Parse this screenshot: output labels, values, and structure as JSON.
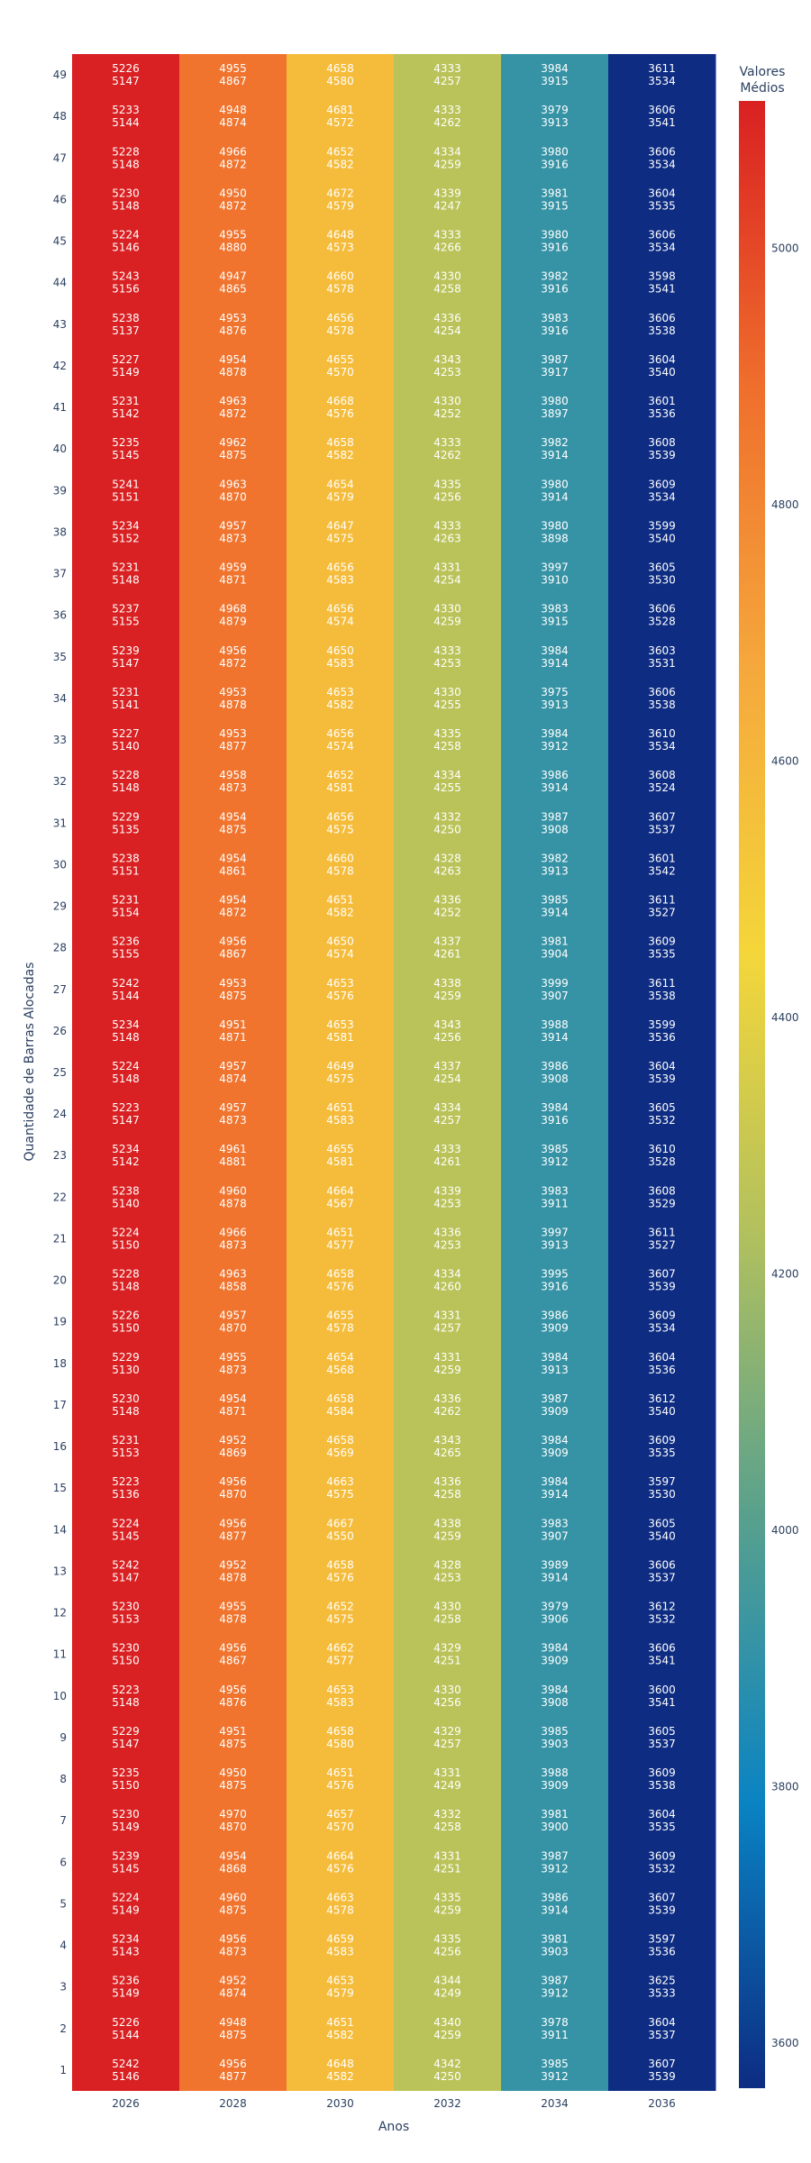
{
  "chart_data": {
    "type": "heatmap",
    "xlabel": "Anos",
    "ylabel": "Quantidade de Barras Alocadas",
    "colorbar_title": [
      "Valores",
      "Médios"
    ],
    "colorbar_ticks": [
      3600,
      3800,
      4000,
      4200,
      4400,
      4600,
      4800,
      5000
    ],
    "colorbar_range": [
      3565,
      5115
    ],
    "colorscale": [
      "#0d2c82",
      "#0a83c3",
      "#57a08e",
      "#b1c05e",
      "#f4d63a",
      "#f5a83c",
      "#ef6e2c",
      "#d92022"
    ],
    "x": [
      "2026",
      "2028",
      "2030",
      "2032",
      "2034",
      "2036"
    ],
    "y": [
      1,
      2,
      3,
      4,
      5,
      6,
      7,
      8,
      9,
      10,
      11,
      12,
      13,
      14,
      15,
      16,
      17,
      18,
      19,
      20,
      21,
      22,
      23,
      24,
      25,
      26,
      27,
      28,
      29,
      30,
      31,
      32,
      33,
      34,
      35,
      36,
      37,
      38,
      39,
      40,
      41,
      42,
      43,
      44,
      45,
      46,
      47,
      48,
      49
    ],
    "column_values": [
      5150,
      4870,
      4578,
      4260,
      3912,
      3535
    ],
    "rows": [
      [
        [
          5242,
          5146
        ],
        [
          4956,
          4877
        ],
        [
          4648,
          4582
        ],
        [
          4342,
          4250
        ],
        [
          3985,
          3912
        ],
        [
          3607,
          3539
        ]
      ],
      [
        [
          5226,
          5144
        ],
        [
          4948,
          4875
        ],
        [
          4651,
          4582
        ],
        [
          4340,
          4259
        ],
        [
          3978,
          3911
        ],
        [
          3604,
          3537
        ]
      ],
      [
        [
          5236,
          5149
        ],
        [
          4952,
          4874
        ],
        [
          4653,
          4579
        ],
        [
          4344,
          4249
        ],
        [
          3987,
          3912
        ],
        [
          3625,
          3533
        ]
      ],
      [
        [
          5234,
          5143
        ],
        [
          4956,
          4873
        ],
        [
          4659,
          4583
        ],
        [
          4335,
          4256
        ],
        [
          3981,
          3903
        ],
        [
          3597,
          3536
        ]
      ],
      [
        [
          5224,
          5149
        ],
        [
          4960,
          4875
        ],
        [
          4663,
          4578
        ],
        [
          4335,
          4259
        ],
        [
          3986,
          3914
        ],
        [
          3607,
          3539
        ]
      ],
      [
        [
          5239,
          5145
        ],
        [
          4954,
          4868
        ],
        [
          4664,
          4576
        ],
        [
          4331,
          4251
        ],
        [
          3987,
          3912
        ],
        [
          3609,
          3532
        ]
      ],
      [
        [
          5230,
          5149
        ],
        [
          4970,
          4870
        ],
        [
          4657,
          4570
        ],
        [
          4332,
          4258
        ],
        [
          3981,
          3900
        ],
        [
          3604,
          3535
        ]
      ],
      [
        [
          5235,
          5150
        ],
        [
          4950,
          4875
        ],
        [
          4651,
          4576
        ],
        [
          4331,
          4249
        ],
        [
          3988,
          3909
        ],
        [
          3609,
          3538
        ]
      ],
      [
        [
          5229,
          5147
        ],
        [
          4951,
          4875
        ],
        [
          4658,
          4580
        ],
        [
          4329,
          4257
        ],
        [
          3985,
          3903
        ],
        [
          3605,
          3537
        ]
      ],
      [
        [
          5223,
          5148
        ],
        [
          4956,
          4876
        ],
        [
          4653,
          4583
        ],
        [
          4330,
          4256
        ],
        [
          3984,
          3908
        ],
        [
          3600,
          3541
        ]
      ],
      [
        [
          5230,
          5150
        ],
        [
          4956,
          4867
        ],
        [
          4662,
          4577
        ],
        [
          4329,
          4251
        ],
        [
          3984,
          3909
        ],
        [
          3606,
          3541
        ]
      ],
      [
        [
          5230,
          5153
        ],
        [
          4955,
          4878
        ],
        [
          4652,
          4575
        ],
        [
          4330,
          4258
        ],
        [
          3979,
          3906
        ],
        [
          3612,
          3532
        ]
      ],
      [
        [
          5242,
          5147
        ],
        [
          4952,
          4878
        ],
        [
          4658,
          4576
        ],
        [
          4328,
          4253
        ],
        [
          3989,
          3914
        ],
        [
          3606,
          3537
        ]
      ],
      [
        [
          5224,
          5145
        ],
        [
          4956,
          4877
        ],
        [
          4667,
          4550
        ],
        [
          4338,
          4259
        ],
        [
          3983,
          3907
        ],
        [
          3605,
          3540
        ]
      ],
      [
        [
          5223,
          5136
        ],
        [
          4956,
          4870
        ],
        [
          4663,
          4575
        ],
        [
          4336,
          4258
        ],
        [
          3984,
          3914
        ],
        [
          3597,
          3530
        ]
      ],
      [
        [
          5231,
          5153
        ],
        [
          4952,
          4869
        ],
        [
          4658,
          4569
        ],
        [
          4343,
          4265
        ],
        [
          3984,
          3909
        ],
        [
          3609,
          3535
        ]
      ],
      [
        [
          5230,
          5148
        ],
        [
          4954,
          4871
        ],
        [
          4658,
          4584
        ],
        [
          4336,
          4262
        ],
        [
          3987,
          3909
        ],
        [
          3612,
          3540
        ]
      ],
      [
        [
          5229,
          5130
        ],
        [
          4955,
          4873
        ],
        [
          4654,
          4568
        ],
        [
          4331,
          4259
        ],
        [
          3984,
          3913
        ],
        [
          3604,
          3536
        ]
      ],
      [
        [
          5226,
          5150
        ],
        [
          4957,
          4870
        ],
        [
          4655,
          4578
        ],
        [
          4331,
          4257
        ],
        [
          3986,
          3909
        ],
        [
          3609,
          3534
        ]
      ],
      [
        [
          5228,
          5148
        ],
        [
          4963,
          4858
        ],
        [
          4658,
          4576
        ],
        [
          4334,
          4260
        ],
        [
          3995,
          3916
        ],
        [
          3607,
          3539
        ]
      ],
      [
        [
          5224,
          5150
        ],
        [
          4966,
          4873
        ],
        [
          4651,
          4577
        ],
        [
          4336,
          4253
        ],
        [
          3997,
          3913
        ],
        [
          3611,
          3527
        ]
      ],
      [
        [
          5238,
          5140
        ],
        [
          4960,
          4878
        ],
        [
          4664,
          4567
        ],
        [
          4339,
          4253
        ],
        [
          3983,
          3911
        ],
        [
          3608,
          3529
        ]
      ],
      [
        [
          5234,
          5142
        ],
        [
          4961,
          4881
        ],
        [
          4655,
          4581
        ],
        [
          4333,
          4261
        ],
        [
          3985,
          3912
        ],
        [
          3610,
          3528
        ]
      ],
      [
        [
          5223,
          5147
        ],
        [
          4957,
          4873
        ],
        [
          4651,
          4583
        ],
        [
          4334,
          4257
        ],
        [
          3984,
          3916
        ],
        [
          3605,
          3532
        ]
      ],
      [
        [
          5224,
          5148
        ],
        [
          4957,
          4874
        ],
        [
          4649,
          4575
        ],
        [
          4337,
          4254
        ],
        [
          3986,
          3908
        ],
        [
          3604,
          3539
        ]
      ],
      [
        [
          5234,
          5148
        ],
        [
          4951,
          4871
        ],
        [
          4653,
          4581
        ],
        [
          4343,
          4256
        ],
        [
          3988,
          3914
        ],
        [
          3599,
          3536
        ]
      ],
      [
        [
          5242,
          5144
        ],
        [
          4953,
          4875
        ],
        [
          4653,
          4576
        ],
        [
          4338,
          4259
        ],
        [
          3999,
          3907
        ],
        [
          3611,
          3538
        ]
      ],
      [
        [
          5236,
          5155
        ],
        [
          4956,
          4867
        ],
        [
          4650,
          4574
        ],
        [
          4337,
          4261
        ],
        [
          3981,
          3904
        ],
        [
          3609,
          3535
        ]
      ],
      [
        [
          5231,
          5154
        ],
        [
          4954,
          4872
        ],
        [
          4651,
          4582
        ],
        [
          4336,
          4252
        ],
        [
          3985,
          3914
        ],
        [
          3611,
          3527
        ]
      ],
      [
        [
          5238,
          5151
        ],
        [
          4954,
          4861
        ],
        [
          4660,
          4578
        ],
        [
          4328,
          4263
        ],
        [
          3982,
          3913
        ],
        [
          3601,
          3542
        ]
      ],
      [
        [
          5229,
          5135
        ],
        [
          4954,
          4875
        ],
        [
          4656,
          4575
        ],
        [
          4332,
          4250
        ],
        [
          3987,
          3908
        ],
        [
          3607,
          3537
        ]
      ],
      [
        [
          5228,
          5148
        ],
        [
          4958,
          4873
        ],
        [
          4652,
          4581
        ],
        [
          4334,
          4255
        ],
        [
          3986,
          3914
        ],
        [
          3608,
          3524
        ]
      ],
      [
        [
          5227,
          5140
        ],
        [
          4953,
          4877
        ],
        [
          4656,
          4574
        ],
        [
          4335,
          4258
        ],
        [
          3984,
          3912
        ],
        [
          3610,
          3534
        ]
      ],
      [
        [
          5231,
          5141
        ],
        [
          4953,
          4878
        ],
        [
          4653,
          4582
        ],
        [
          4330,
          4255
        ],
        [
          3975,
          3913
        ],
        [
          3606,
          3538
        ]
      ],
      [
        [
          5239,
          5147
        ],
        [
          4956,
          4872
        ],
        [
          4650,
          4583
        ],
        [
          4333,
          4253
        ],
        [
          3984,
          3914
        ],
        [
          3603,
          3531
        ]
      ],
      [
        [
          5237,
          5155
        ],
        [
          4968,
          4879
        ],
        [
          4656,
          4574
        ],
        [
          4330,
          4259
        ],
        [
          3983,
          3915
        ],
        [
          3606,
          3528
        ]
      ],
      [
        [
          5231,
          5148
        ],
        [
          4959,
          4871
        ],
        [
          4656,
          4583
        ],
        [
          4331,
          4254
        ],
        [
          3997,
          3910
        ],
        [
          3605,
          3530
        ]
      ],
      [
        [
          5234,
          5152
        ],
        [
          4957,
          4873
        ],
        [
          4647,
          4575
        ],
        [
          4333,
          4263
        ],
        [
          3980,
          3898
        ],
        [
          3599,
          3540
        ]
      ],
      [
        [
          5241,
          5151
        ],
        [
          4963,
          4870
        ],
        [
          4654,
          4579
        ],
        [
          4335,
          4256
        ],
        [
          3980,
          3914
        ],
        [
          3609,
          3534
        ]
      ],
      [
        [
          5235,
          5145
        ],
        [
          4962,
          4875
        ],
        [
          4658,
          4582
        ],
        [
          4333,
          4262
        ],
        [
          3982,
          3914
        ],
        [
          3608,
          3539
        ]
      ],
      [
        [
          5231,
          5142
        ],
        [
          4963,
          4872
        ],
        [
          4668,
          4576
        ],
        [
          4330,
          4252
        ],
        [
          3980,
          3897
        ],
        [
          3601,
          3536
        ]
      ],
      [
        [
          5227,
          5149
        ],
        [
          4954,
          4878
        ],
        [
          4655,
          4570
        ],
        [
          4343,
          4253
        ],
        [
          3987,
          3917
        ],
        [
          3604,
          3540
        ]
      ],
      [
        [
          5238,
          5137
        ],
        [
          4953,
          4876
        ],
        [
          4656,
          4578
        ],
        [
          4336,
          4254
        ],
        [
          3983,
          3916
        ],
        [
          3606,
          3538
        ]
      ],
      [
        [
          5243,
          5156
        ],
        [
          4947,
          4865
        ],
        [
          4660,
          4578
        ],
        [
          4330,
          4258
        ],
        [
          3982,
          3916
        ],
        [
          3598,
          3541
        ]
      ],
      [
        [
          5224,
          5146
        ],
        [
          4955,
          4880
        ],
        [
          4648,
          4573
        ],
        [
          4333,
          4266
        ],
        [
          3980,
          3916
        ],
        [
          3606,
          3534
        ]
      ],
      [
        [
          5230,
          5148
        ],
        [
          4950,
          4872
        ],
        [
          4672,
          4579
        ],
        [
          4339,
          4247
        ],
        [
          3981,
          3915
        ],
        [
          3604,
          3535
        ]
      ],
      [
        [
          5228,
          5148
        ],
        [
          4966,
          4872
        ],
        [
          4652,
          4582
        ],
        [
          4334,
          4259
        ],
        [
          3980,
          3916
        ],
        [
          3606,
          3534
        ]
      ],
      [
        [
          5233,
          5144
        ],
        [
          4948,
          4874
        ],
        [
          4681,
          4572
        ],
        [
          4333,
          4262
        ],
        [
          3979,
          3913
        ],
        [
          3606,
          3541
        ]
      ],
      [
        [
          5226,
          5147
        ],
        [
          4955,
          4867
        ],
        [
          4658,
          4580
        ],
        [
          4333,
          4257
        ],
        [
          3984,
          3915
        ],
        [
          3611,
          3534
        ]
      ]
    ]
  }
}
